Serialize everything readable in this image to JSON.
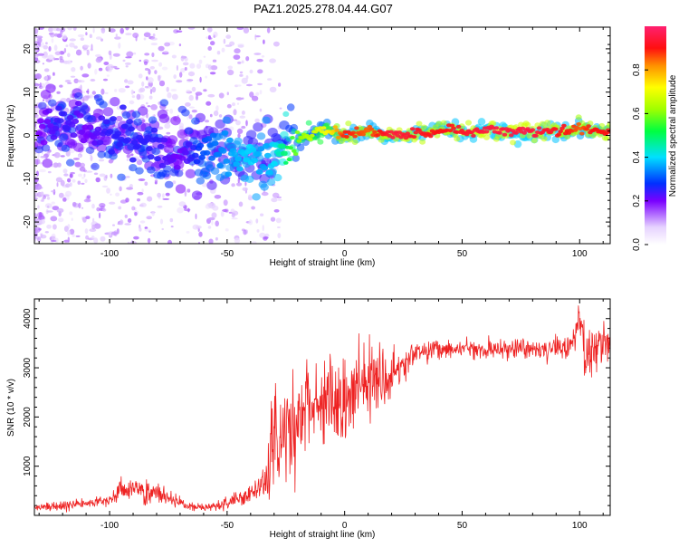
{
  "figure": {
    "title": "PAZ1.2025.278.04.44.G07"
  },
  "chart_data": [
    {
      "type": "heatmap",
      "title": "PAZ1.2025.278.04.44.G07",
      "xlabel": "Height of straight line (km)",
      "ylabel": "Frequency (Hz)",
      "xlim": [
        -132,
        113
      ],
      "ylim": [
        -25,
        25
      ],
      "xticks": [
        -100,
        -50,
        0,
        50,
        100
      ],
      "yticks": [
        -20,
        -10,
        0,
        10,
        20
      ],
      "xtick_labels": [
        "-100",
        "-50",
        "0",
        "50",
        "100"
      ],
      "ytick_labels": [
        "-20",
        "-10",
        "0",
        "10",
        "20"
      ],
      "ridge": {
        "x": [
          -128,
          -120,
          -110,
          -100,
          -90,
          -80,
          -70,
          -60,
          -50,
          -40,
          -35,
          -30,
          -25,
          -20,
          -15,
          -10,
          -5,
          0,
          10,
          20,
          40,
          60,
          80,
          95,
          100,
          105,
          113
        ],
        "y": [
          2,
          3,
          2,
          1,
          -1,
          -3,
          -5,
          -3,
          -4,
          -5,
          -6,
          -4,
          -2,
          -1,
          0,
          1.5,
          1,
          0,
          1,
          0,
          1,
          1,
          1,
          1,
          2,
          1,
          1
        ],
        "amplitude": [
          0.2,
          0.25,
          0.2,
          0.25,
          0.25,
          0.25,
          0.2,
          0.3,
          0.35,
          0.4,
          0.35,
          0.4,
          0.5,
          0.6,
          0.65,
          0.7,
          0.75,
          0.9,
          0.85,
          0.95,
          0.9,
          0.95,
          0.95,
          0.9,
          0.85,
          0.9,
          0.9
        ]
      },
      "colorbar": {
        "label": "Normalized spectral amplitude",
        "range": [
          0,
          1
        ],
        "ticks": [
          0.0,
          0.2,
          0.4,
          0.6,
          0.8
        ],
        "tick_labels": [
          "0.0",
          "0.2",
          "0.4",
          "0.6",
          "0.8"
        ]
      }
    },
    {
      "type": "line",
      "xlabel": "Height of straight line (km)",
      "ylabel": "SNR (10 * v/v)",
      "xlim": [
        -132,
        113
      ],
      "ylim": [
        0,
        4400
      ],
      "xticks": [
        -100,
        -50,
        0,
        50,
        100
      ],
      "yticks": [
        1000,
        2000,
        3000,
        4000
      ],
      "xtick_labels": [
        "-100",
        "-50",
        "0",
        "50",
        "100"
      ],
      "ytick_labels": [
        "1000",
        "2000",
        "3000",
        "4000"
      ],
      "series": [
        {
          "name": "SNR",
          "color": "#ee2222",
          "x": [
            -132,
            -120,
            -110,
            -100,
            -95,
            -90,
            -85,
            -80,
            -75,
            -70,
            -65,
            -60,
            -55,
            -50,
            -45,
            -40,
            -35,
            -32,
            -30,
            -28,
            -25,
            -22,
            -20,
            -15,
            -10,
            -5,
            0,
            5,
            10,
            15,
            20,
            25,
            30,
            40,
            50,
            60,
            70,
            80,
            90,
            95,
            100,
            103,
            106,
            110,
            113
          ],
          "y": [
            150,
            200,
            250,
            300,
            550,
            500,
            500,
            450,
            350,
            250,
            150,
            150,
            200,
            250,
            350,
            450,
            550,
            900,
            1500,
            1300,
            1700,
            1600,
            2000,
            2200,
            2200,
            2300,
            2200,
            2500,
            2700,
            2600,
            2900,
            3100,
            3300,
            3350,
            3400,
            3350,
            3400,
            3350,
            3400,
            3400,
            3900,
            3200,
            3300,
            3400,
            3500
          ],
          "noise": [
            40,
            45,
            50,
            60,
            120,
            130,
            130,
            110,
            80,
            60,
            40,
            40,
            50,
            60,
            90,
            110,
            150,
            400,
            600,
            500,
            500,
            500,
            450,
            450,
            450,
            450,
            500,
            450,
            450,
            400,
            250,
            150,
            120,
            110,
            100,
            100,
            100,
            100,
            110,
            130,
            250,
            300,
            250,
            200,
            200
          ]
        }
      ]
    }
  ]
}
